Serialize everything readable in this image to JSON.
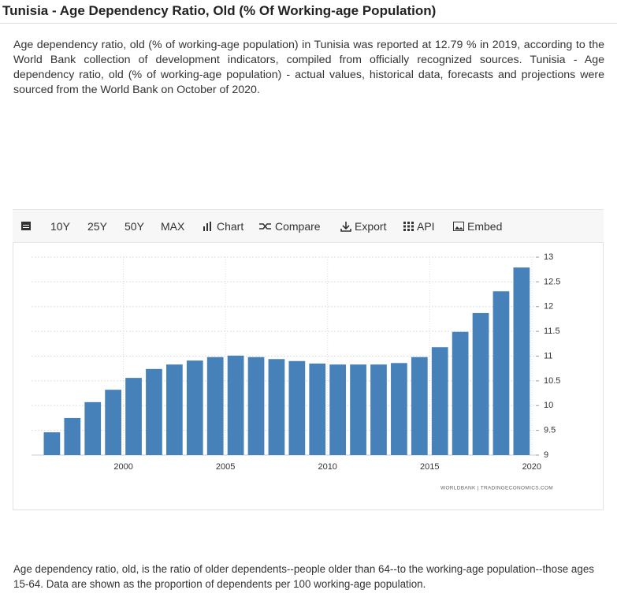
{
  "header": {
    "title": "Tunisia - Age Dependency Ratio, Old (% Of Working-age Population)"
  },
  "intro": "Age dependency ratio, old (% of working-age population) in Tunisia was reported at 12.79 % in 2019, according to the World Bank collection of development indicators, compiled from officially recognized sources. Tunisia - Age dependency ratio, old (% of working-age population) - actual values, historical data, forecasts and projections were sourced from the World Bank on October of 2020.",
  "toolbar": [
    "10Y",
    "25Y",
    "50Y",
    "MAX",
    "Chart",
    "Compare",
    "Export",
    "API",
    "Embed"
  ],
  "chart_data": {
    "type": "bar",
    "x": [
      1996,
      1997,
      1998,
      1999,
      2000,
      2001,
      2002,
      2003,
      2004,
      2005,
      2006,
      2007,
      2008,
      2009,
      2010,
      2011,
      2012,
      2013,
      2014,
      2015,
      2016,
      2017,
      2018,
      2019
    ],
    "values": [
      9.46,
      9.75,
      10.07,
      10.32,
      10.56,
      10.74,
      10.83,
      10.91,
      10.98,
      11.01,
      10.98,
      10.94,
      10.9,
      10.85,
      10.83,
      10.83,
      10.83,
      10.86,
      10.98,
      11.18,
      11.49,
      11.87,
      12.31,
      12.79
    ],
    "color": "#4682b9",
    "xlim": [
      1995.5,
      2020.2
    ],
    "xticks": [
      2000,
      2005,
      2010,
      2015,
      2020
    ],
    "ylim": [
      9,
      13
    ],
    "yticks": [
      9,
      9.5,
      10,
      10.5,
      11,
      11.5,
      12,
      12.5,
      13
    ],
    "grid": true,
    "credit": "WORLDBANK | TRADINGECONOMICS.COM"
  },
  "footer": "Age dependency ratio, old, is the ratio of older dependents--people older than 64--to the working-age population--those ages 15-64. Data are shown as the proportion of dependents per 100 working-age population."
}
